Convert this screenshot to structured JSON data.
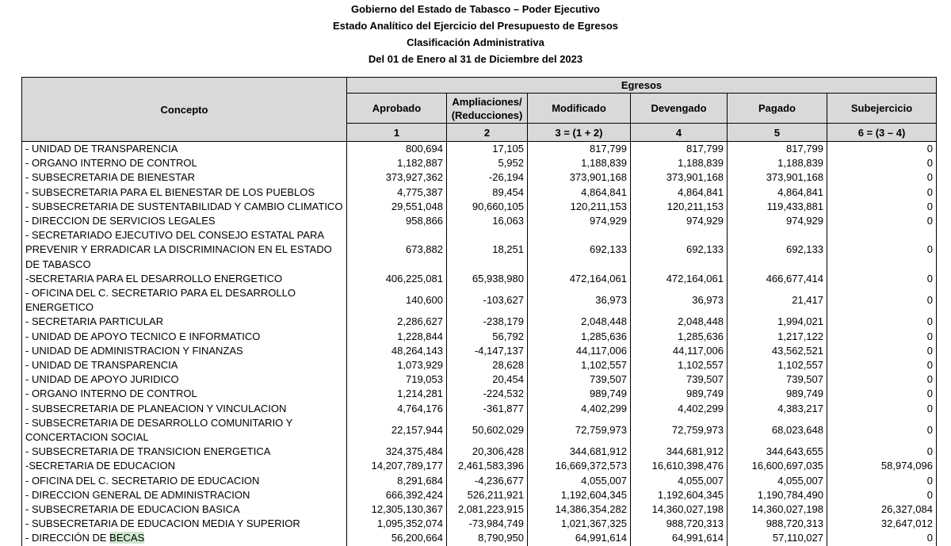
{
  "titles": [
    "Gobierno del Estado de Tabasco – Poder Ejecutivo",
    "Estado Analítico del Ejercicio del Presupuesto de Egresos",
    "Clasificación Administrativa",
    "Del 01 de Enero al 31 de Diciembre del 2023"
  ],
  "header": {
    "concepto": "Concepto",
    "group": "Egresos",
    "columns": [
      {
        "label": "Aprobado",
        "num": "1"
      },
      {
        "label": "Ampliaciones/ (Reducciones)",
        "num": "2"
      },
      {
        "label": "Modificado",
        "num": "3 = (1 + 2)"
      },
      {
        "label": "Devengado",
        "num": "4"
      },
      {
        "label": "Pagado",
        "num": "5"
      },
      {
        "label": "Subejercicio",
        "num": "6 = (3 – 4)"
      }
    ]
  },
  "rows": [
    {
      "concepto": "- UNIDAD DE TRANSPARENCIA",
      "values": [
        "800,694",
        "17,105",
        "817,799",
        "817,799",
        "817,799",
        "0"
      ]
    },
    {
      "concepto": "- ORGANO INTERNO DE CONTROL",
      "values": [
        "1,182,887",
        "5,952",
        "1,188,839",
        "1,188,839",
        "1,188,839",
        "0"
      ]
    },
    {
      "concepto": "- SUBSECRETARIA DE BIENESTAR",
      "values": [
        "373,927,362",
        "-26,194",
        "373,901,168",
        "373,901,168",
        "373,901,168",
        "0"
      ]
    },
    {
      "concepto": "- SUBSECRETARIA PARA EL BIENESTAR DE LOS PUEBLOS",
      "values": [
        "4,775,387",
        "89,454",
        "4,864,841",
        "4,864,841",
        "4,864,841",
        "0"
      ]
    },
    {
      "concepto": "- SUBSECRETARIA DE SUSTENTABILIDAD Y CAMBIO CLIMATICO",
      "values": [
        "29,551,048",
        "90,660,105",
        "120,211,153",
        "120,211,153",
        "119,433,881",
        "0"
      ]
    },
    {
      "concepto": "- DIRECCION DE SERVICIOS LEGALES",
      "values": [
        "958,866",
        "16,063",
        "974,929",
        "974,929",
        "974,929",
        "0"
      ]
    },
    {
      "concepto": "- SECRETARIADO EJECUTIVO DEL CONSEJO ESTATAL PARA PREVENIR Y ERRADICAR LA DISCRIMINACION EN EL ESTADO DE TABASCO",
      "lines": 3,
      "values": [
        "673,882",
        "18,251",
        "692,133",
        "692,133",
        "692,133",
        "0"
      ]
    },
    {
      "concepto": "-SECRETARIA PARA EL DESARROLLO ENERGETICO",
      "values": [
        "406,225,081",
        "65,938,980",
        "472,164,061",
        "472,164,061",
        "466,677,414",
        "0"
      ]
    },
    {
      "concepto": "- OFICINA DEL C. SECRETARIO PARA EL DESARROLLO ENERGETICO",
      "values": [
        "140,600",
        "-103,627",
        "36,973",
        "36,973",
        "21,417",
        "0"
      ]
    },
    {
      "concepto": "- SECRETARIA PARTICULAR",
      "values": [
        "2,286,627",
        "-238,179",
        "2,048,448",
        "2,048,448",
        "1,994,021",
        "0"
      ]
    },
    {
      "concepto": "- UNIDAD DE APOYO TECNICO E INFORMATICO",
      "values": [
        "1,228,844",
        "56,792",
        "1,285,636",
        "1,285,636",
        "1,217,122",
        "0"
      ]
    },
    {
      "concepto": "- UNIDAD DE ADMINISTRACION Y FINANZAS",
      "values": [
        "48,264,143",
        "-4,147,137",
        "44,117,006",
        "44,117,006",
        "43,562,521",
        "0"
      ]
    },
    {
      "concepto": "- UNIDAD DE TRANSPARENCIA",
      "values": [
        "1,073,929",
        "28,628",
        "1,102,557",
        "1,102,557",
        "1,102,557",
        "0"
      ]
    },
    {
      "concepto": "- UNIDAD DE APOYO JURIDICO",
      "values": [
        "719,053",
        "20,454",
        "739,507",
        "739,507",
        "739,507",
        "0"
      ]
    },
    {
      "concepto": "- ORGANO INTERNO DE CONTROL",
      "values": [
        "1,214,281",
        "-224,532",
        "989,749",
        "989,749",
        "989,749",
        "0"
      ]
    },
    {
      "concepto": "- SUBSECRETARIA DE PLANEACION Y VINCULACION",
      "values": [
        "4,764,176",
        "-361,877",
        "4,402,299",
        "4,402,299",
        "4,383,217",
        "0"
      ]
    },
    {
      "concepto": "- SUBSECRETARIA DE DESARROLLO COMUNITARIO Y CONCERTACION SOCIAL",
      "lines": 2,
      "values": [
        "22,157,944",
        "50,602,029",
        "72,759,973",
        "72,759,973",
        "68,023,648",
        "0"
      ]
    },
    {
      "concepto": "- SUBSECRETARIA DE TRANSICION ENERGETICA",
      "values": [
        "324,375,484",
        "20,306,428",
        "344,681,912",
        "344,681,912",
        "344,643,655",
        "0"
      ]
    },
    {
      "concepto": "-SECRETARIA DE EDUCACION",
      "values": [
        "14,207,789,177",
        "2,461,583,396",
        "16,669,372,573",
        "16,610,398,476",
        "16,600,697,035",
        "58,974,096"
      ]
    },
    {
      "concepto": "- OFICINA DEL C. SECRETARIO DE EDUCACION",
      "values": [
        "8,291,684",
        "-4,236,677",
        "4,055,007",
        "4,055,007",
        "4,055,007",
        "0"
      ]
    },
    {
      "concepto": "- DIRECCION GENERAL DE ADMINISTRACION",
      "values": [
        "666,392,424",
        "526,211,921",
        "1,192,604,345",
        "1,192,604,345",
        "1,190,784,490",
        "0"
      ]
    },
    {
      "concepto": "- SUBSECRETARIA DE EDUCACION BASICA",
      "values": [
        "12,305,130,367",
        "2,081,223,915",
        "14,386,354,282",
        "14,360,027,198",
        "14,360,027,198",
        "26,327,084"
      ]
    },
    {
      "concepto": "- SUBSECRETARIA DE EDUCACION MEDIA Y SUPERIOR",
      "values": [
        "1,095,352,074",
        "-73,984,749",
        "1,021,367,325",
        "988,720,313",
        "988,720,313",
        "32,647,012"
      ]
    },
    {
      "concepto": "- DIRECCIÓN DE BECAS",
      "highlight": "BECAS",
      "values": [
        "56,200,664",
        "8,790,950",
        "64,991,614",
        "64,991,614",
        "57,110,027",
        "0"
      ]
    }
  ]
}
